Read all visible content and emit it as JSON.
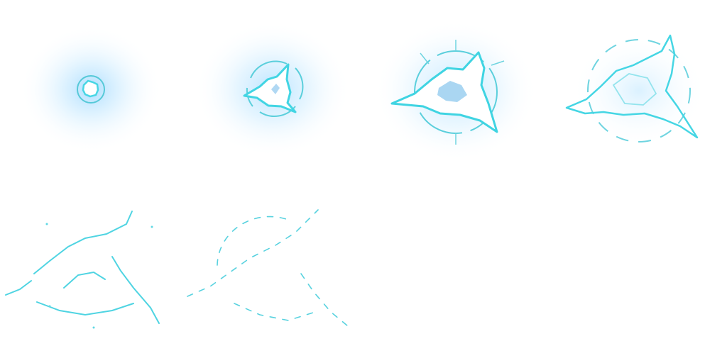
{
  "sprite_sheet": {
    "effect": "electric-burst",
    "columns": 4,
    "rows": 2,
    "frame_count": 8,
    "filled_frames": 6,
    "colors": {
      "background": "#ffffff",
      "glow": "#bfe6ff",
      "energy": "#40d8e6",
      "core": "#ffffff",
      "ring": "#5bcfdc",
      "inner_blue": "#8ec8ee"
    }
  }
}
